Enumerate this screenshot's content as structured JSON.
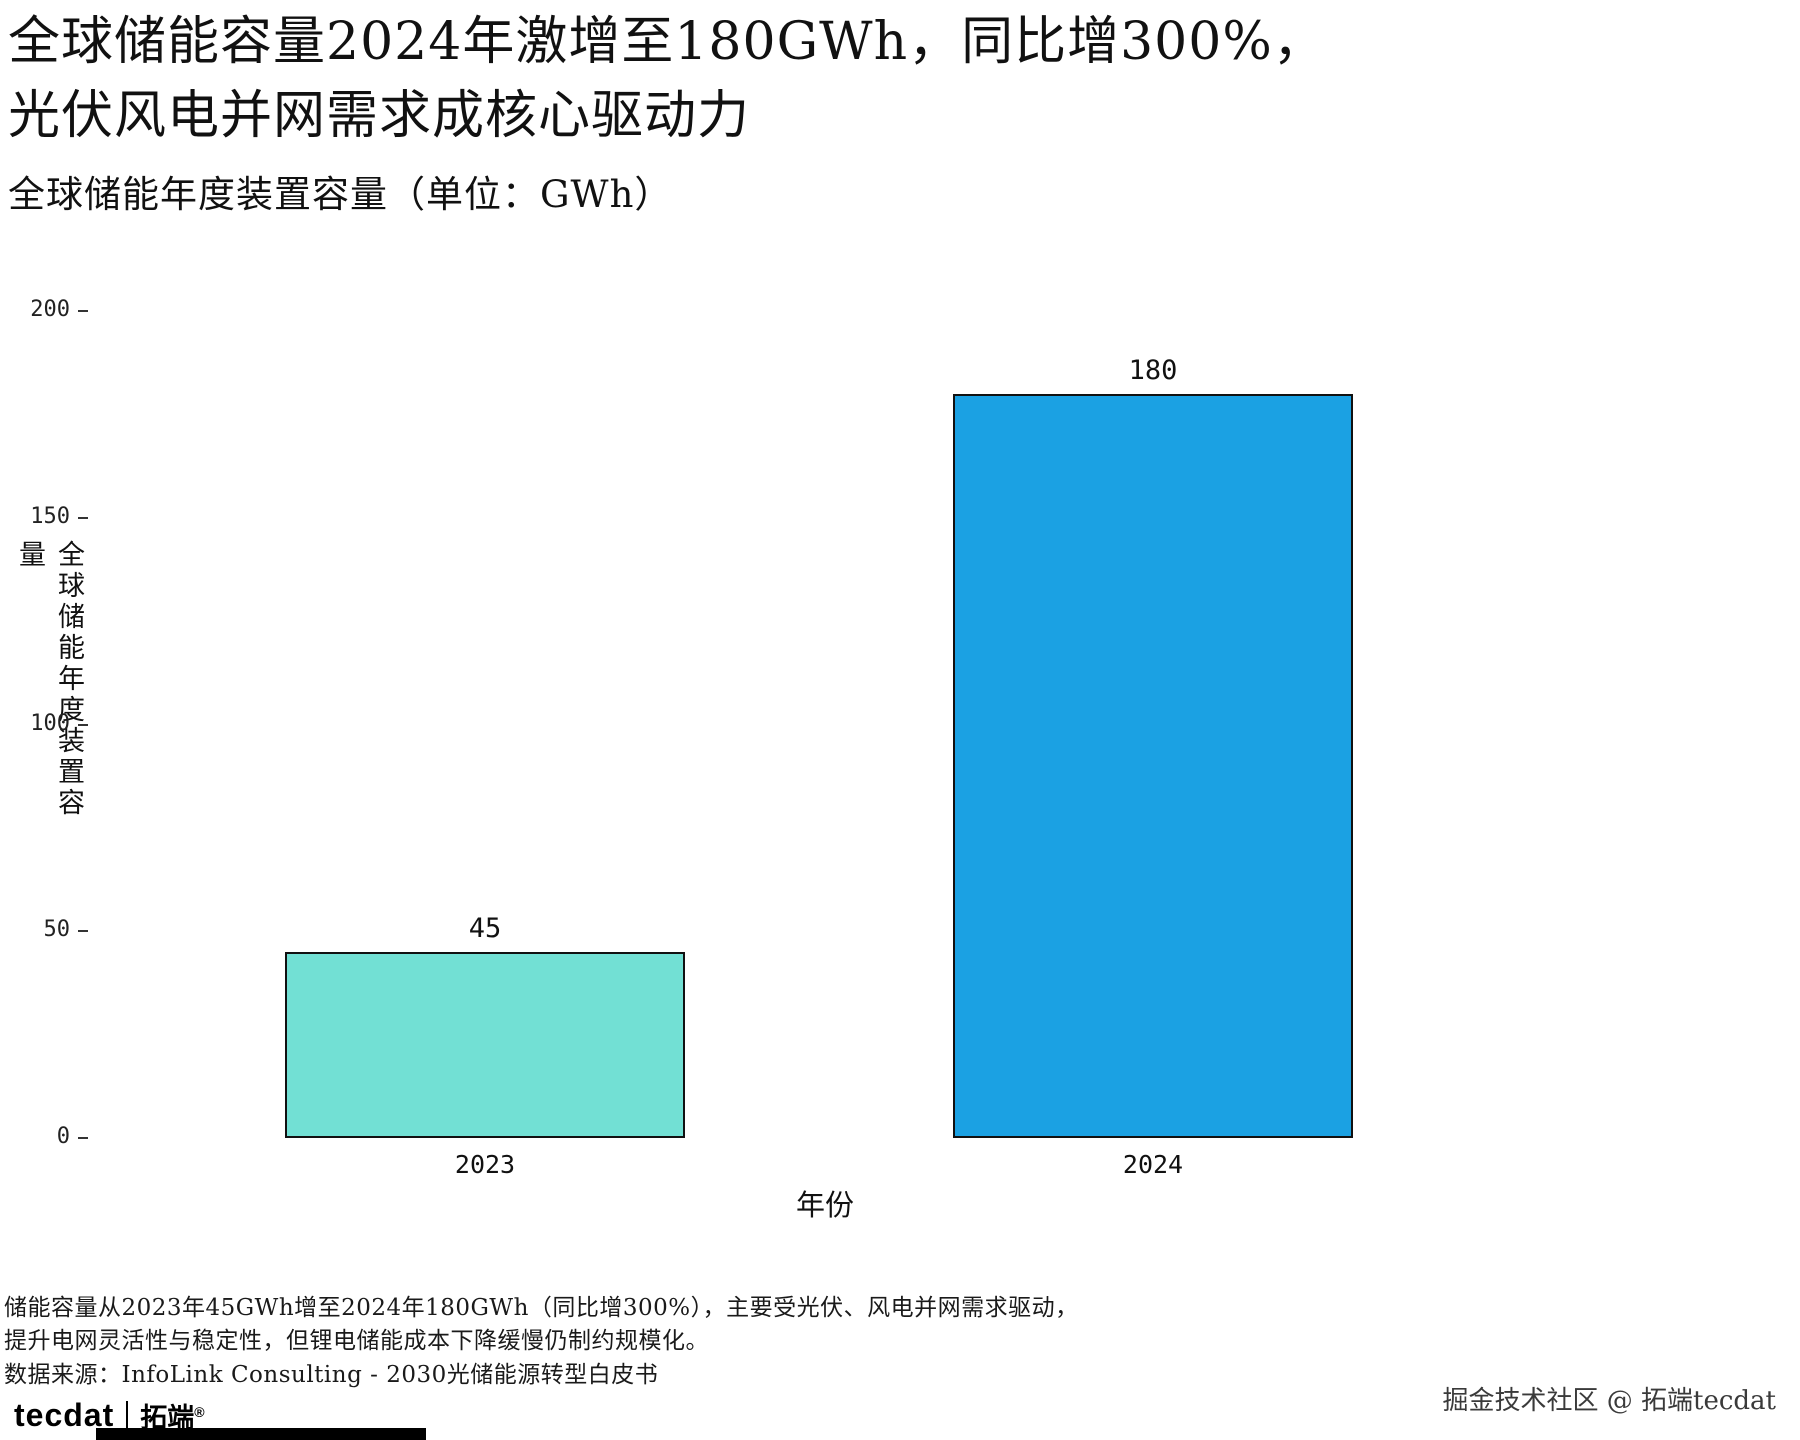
{
  "title": {
    "line1": "全球储能容量2024年激增至180GWh，同比增300%，",
    "line2": "光伏风电并网需求成核心驱动力"
  },
  "subtitle": "全球储能年度装置容量（单位：GWh）",
  "chart_data": {
    "type": "bar",
    "categories": [
      "2023",
      "2024"
    ],
    "values": [
      45,
      180
    ],
    "value_labels": [
      "45",
      "180"
    ],
    "bar_colors": [
      "#72E0D4",
      "#1BA1E3"
    ],
    "bar_border_color": "#111111",
    "title": "全球储能年度装置容量（单位：GWh）",
    "xlabel": "年份",
    "ylabel": "全球储能年度装置容量",
    "ylim": [
      0,
      200
    ],
    "yticks": [
      0,
      50,
      100,
      150,
      200
    ],
    "grid": "off",
    "legend": "none"
  },
  "caption": {
    "line1": "储能容量从2023年45GWh增至2024年180GWh（同比增300%），主要受光伏、风电并网需求驱动，",
    "line2": "提升电网灵活性与稳定性，但锂电储能成本下降缓慢仍制约规模化。",
    "line3": "数据来源：InfoLink Consulting - 2030光储能源转型白皮书"
  },
  "footer": {
    "logo_text": "tecdat",
    "logo_brand": "拓端",
    "logo_reg": "®",
    "credit": "掘金技术社区 @ 拓端tecdat"
  }
}
